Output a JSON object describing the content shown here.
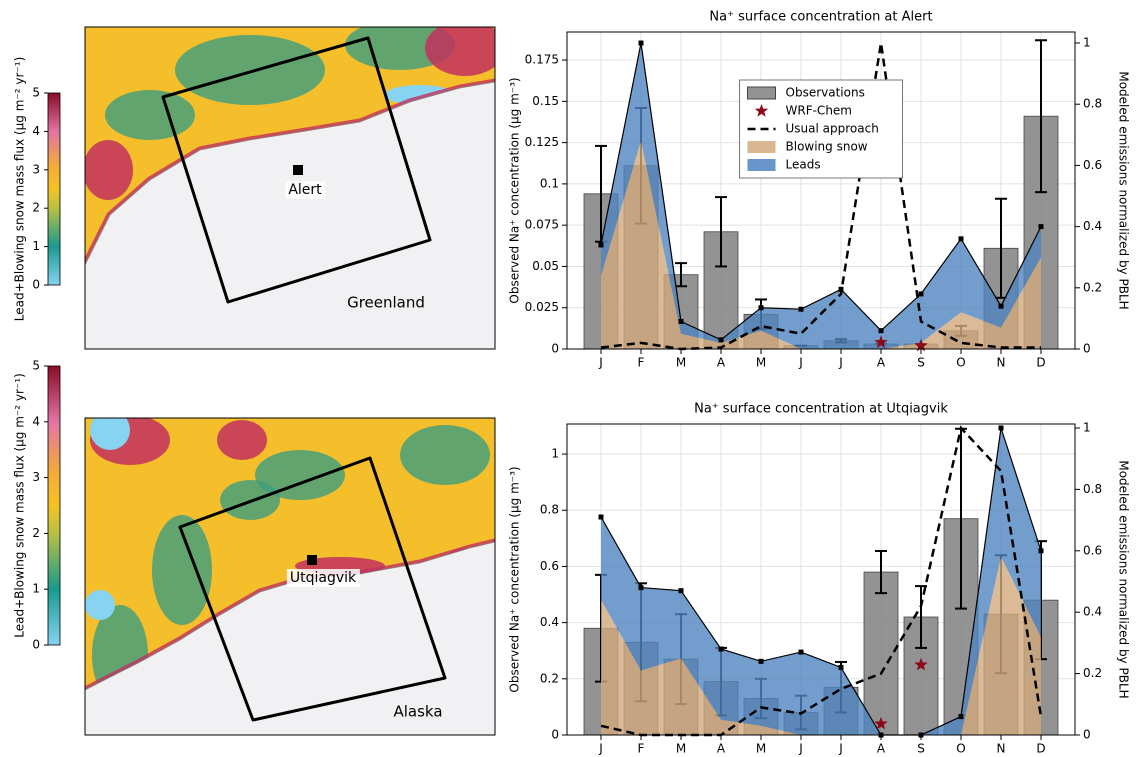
{
  "chart_data": [
    {
      "type": "map",
      "colorbar_label": "Lead+Blowing snow mass flux (µg m⁻² yr⁻¹)",
      "clim": [
        0,
        5
      ],
      "colorbar_ticks": [
        0,
        1,
        2,
        3,
        4,
        5
      ],
      "site": "Alert",
      "region": "Greenland"
    },
    {
      "type": "bar",
      "title": "Na⁺ surface concentration at Alert",
      "ylabel": "Observed Na⁺ concentration (µg m⁻³)",
      "y2label": "Modeled emissions normalized by PBLH",
      "categories": [
        "J",
        "F",
        "M",
        "A",
        "M",
        "J",
        "J",
        "A",
        "S",
        "O",
        "N",
        "D"
      ],
      "ylim": [
        0,
        0.192
      ],
      "yticks": [
        0,
        0.025,
        0.05,
        0.075,
        0.1,
        0.125,
        0.15,
        0.175
      ],
      "y2lim": [
        0,
        1.036
      ],
      "y2ticks": [
        0,
        0.2,
        0.4,
        0.6,
        0.8,
        1
      ],
      "grid": true,
      "legend": "upper center",
      "series": [
        {
          "name": "Observations",
          "type": "bar",
          "color": "#808080",
          "values": [
            0.094,
            0.111,
            0.045,
            0.071,
            0.021,
            0.002,
            0.005,
            0.003,
            0.003,
            0.011,
            0.061,
            0.141
          ],
          "errors": [
            0.029,
            0.035,
            0.007,
            0.021,
            0.009,
            0.0,
            0.001,
            0.0,
            0.0,
            0.003,
            0.03,
            0.046
          ]
        },
        {
          "name": "WRF-Chem",
          "type": "scatter",
          "color": "#8b0a1a",
          "values": [
            null,
            null,
            null,
            null,
            null,
            null,
            null,
            0.004,
            0.002,
            null,
            null,
            null
          ]
        },
        {
          "name": "Usual approach",
          "type": "line",
          "axis": "y2",
          "color": "#000000",
          "values": [
            0.005,
            0.02,
            0.0,
            0.005,
            0.075,
            0.05,
            0.18,
            1.0,
            0.09,
            0.02,
            0.005,
            0.005
          ]
        },
        {
          "name": "Blowing snow",
          "type": "area",
          "axis": "y2",
          "color": "#d2aa7d",
          "values": [
            0.24,
            0.68,
            0.05,
            0.02,
            0.06,
            0.0,
            0.0,
            0.0,
            0.02,
            0.12,
            0.07,
            0.3
          ]
        },
        {
          "name": "Leads",
          "type": "area",
          "axis": "y2",
          "color": "#4f84bf",
          "stacked": true,
          "values": [
            0.1,
            0.32,
            0.04,
            0.01,
            0.075,
            0.13,
            0.195,
            0.06,
            0.16,
            0.24,
            0.07,
            0.1
          ]
        }
      ]
    },
    {
      "type": "map",
      "colorbar_label": "Lead+Blowing snow mass flux (µg m⁻² yr⁻¹)",
      "clim": [
        0,
        5
      ],
      "colorbar_ticks": [
        0,
        1,
        2,
        3,
        4,
        5
      ],
      "site": "Utqiagvik",
      "region": "Alaska"
    },
    {
      "type": "bar",
      "title": "Na⁺ surface concentration at Utqiagvik",
      "ylabel": "Observed Na⁺ concentration (µg m⁻³)",
      "y2label": "Modeled emissions normalized by PBLH",
      "categories": [
        "J",
        "F",
        "M",
        "A",
        "M",
        "J",
        "J",
        "A",
        "S",
        "O",
        "N",
        "D"
      ],
      "ylim": [
        0,
        1.107
      ],
      "yticks": [
        0,
        0.2,
        0.4,
        0.6,
        0.8,
        1
      ],
      "y2lim": [
        0,
        1.013
      ],
      "y2ticks": [
        0,
        0.2,
        0.4,
        0.6,
        0.8,
        1
      ],
      "grid": true,
      "series": [
        {
          "type": "bar",
          "color": "#808080",
          "values": [
            0.38,
            0.33,
            0.27,
            0.19,
            0.13,
            0.08,
            0.17,
            0.58,
            0.42,
            0.77,
            0.43,
            0.48
          ],
          "errors": [
            0.19,
            0.21,
            0.16,
            0.12,
            0.07,
            0.06,
            0.09,
            0.075,
            0.11,
            0.32,
            0.21,
            0.21
          ]
        },
        {
          "type": "scatter",
          "color": "#8b0a1a",
          "values": [
            null,
            null,
            null,
            null,
            null,
            null,
            null,
            0.04,
            0.25,
            null,
            null,
            null
          ]
        },
        {
          "type": "line",
          "axis": "y2",
          "color": "#000000",
          "values": [
            0.03,
            0.0,
            0.0,
            0.0,
            0.09,
            0.07,
            0.15,
            0.2,
            0.42,
            1.0,
            0.86,
            0.06
          ]
        },
        {
          "type": "area",
          "axis": "y2",
          "color": "#d2aa7d",
          "values": [
            0.44,
            0.21,
            0.25,
            0.05,
            0.03,
            0.0,
            0.0,
            0.0,
            0.0,
            0.0,
            0.58,
            0.32
          ]
        },
        {
          "type": "area",
          "axis": "y2",
          "color": "#4f84bf",
          "stacked": true,
          "values": [
            0.27,
            0.27,
            0.22,
            0.23,
            0.21,
            0.27,
            0.22,
            0.0,
            0.0,
            0.06,
            0.42,
            0.28
          ]
        }
      ]
    }
  ]
}
